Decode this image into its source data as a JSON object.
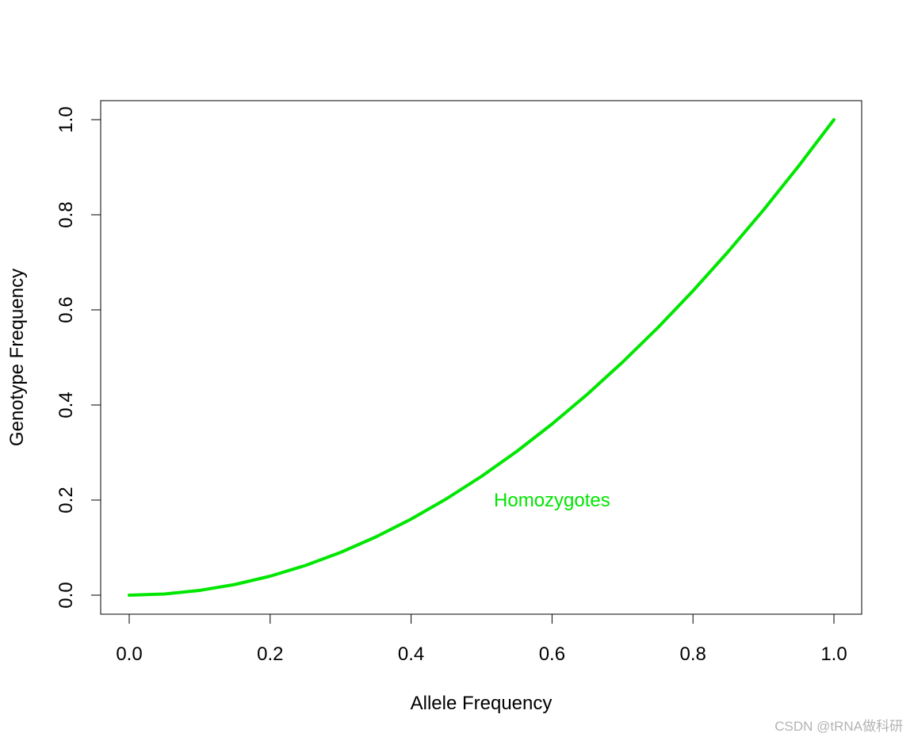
{
  "chart_data": {
    "type": "line",
    "title": "",
    "xlabel": "Allele Frequency",
    "ylabel": "Genotype Frequency",
    "xlim": [
      0.0,
      1.0
    ],
    "ylim": [
      0.0,
      1.0
    ],
    "x_ticks": [
      "0.0",
      "0.2",
      "0.4",
      "0.6",
      "0.8",
      "1.0"
    ],
    "y_ticks": [
      "0.0",
      "0.2",
      "0.4",
      "0.6",
      "0.8",
      "1.0"
    ],
    "grid": false,
    "series": [
      {
        "color": "#00e600",
        "x": [
          0.0,
          0.05,
          0.1,
          0.15,
          0.2,
          0.25,
          0.3,
          0.35,
          0.4,
          0.45,
          0.5,
          0.55,
          0.6,
          0.65,
          0.7,
          0.75,
          0.8,
          0.85,
          0.9,
          0.95,
          1.0
        ],
        "y": [
          0.0,
          0.0025,
          0.01,
          0.0225,
          0.04,
          0.0625,
          0.09,
          0.1225,
          0.16,
          0.2025,
          0.25,
          0.3025,
          0.36,
          0.4225,
          0.49,
          0.5625,
          0.64,
          0.7225,
          0.81,
          0.9025,
          1.0
        ]
      }
    ],
    "annotations": [
      {
        "text": "Homozygotes",
        "x": 0.6,
        "y": 0.2,
        "color": "#00e600"
      }
    ]
  },
  "watermark": "CSDN @tRNA做科研"
}
